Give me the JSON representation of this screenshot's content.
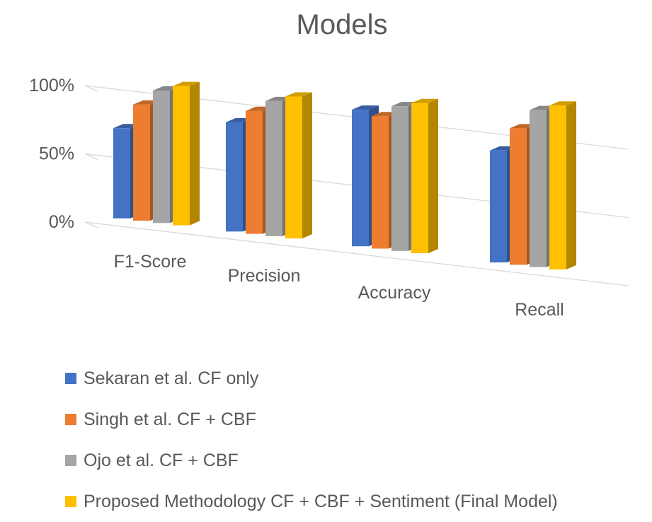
{
  "chart_data": {
    "type": "bar",
    "title": "Models",
    "categories": [
      "F1-Score",
      "Precision",
      "Accuracy",
      "Recall"
    ],
    "series": [
      {
        "name": "Sekaran et al. CF only",
        "color": "#4472C4",
        "values": [
          66,
          80,
          100,
          82
        ]
      },
      {
        "name": "Singh et al. CF + CBF",
        "color": "#ED7D31",
        "values": [
          85,
          90,
          97,
          100
        ]
      },
      {
        "name": "Ojo et al. CF + CBF",
        "color": "#A5A5A5",
        "values": [
          97,
          99,
          106,
          115
        ]
      },
      {
        "name": "Proposed Methodology CF + CBF + Sentiment (Final Model)",
        "color": "#FFC000",
        "values": [
          102,
          104,
          110,
          120
        ]
      }
    ],
    "ytick_labels": [
      "0%",
      "50%",
      "100%"
    ],
    "ylim": [
      0,
      100
    ],
    "legend_position": "bottom",
    "grid": true
  }
}
